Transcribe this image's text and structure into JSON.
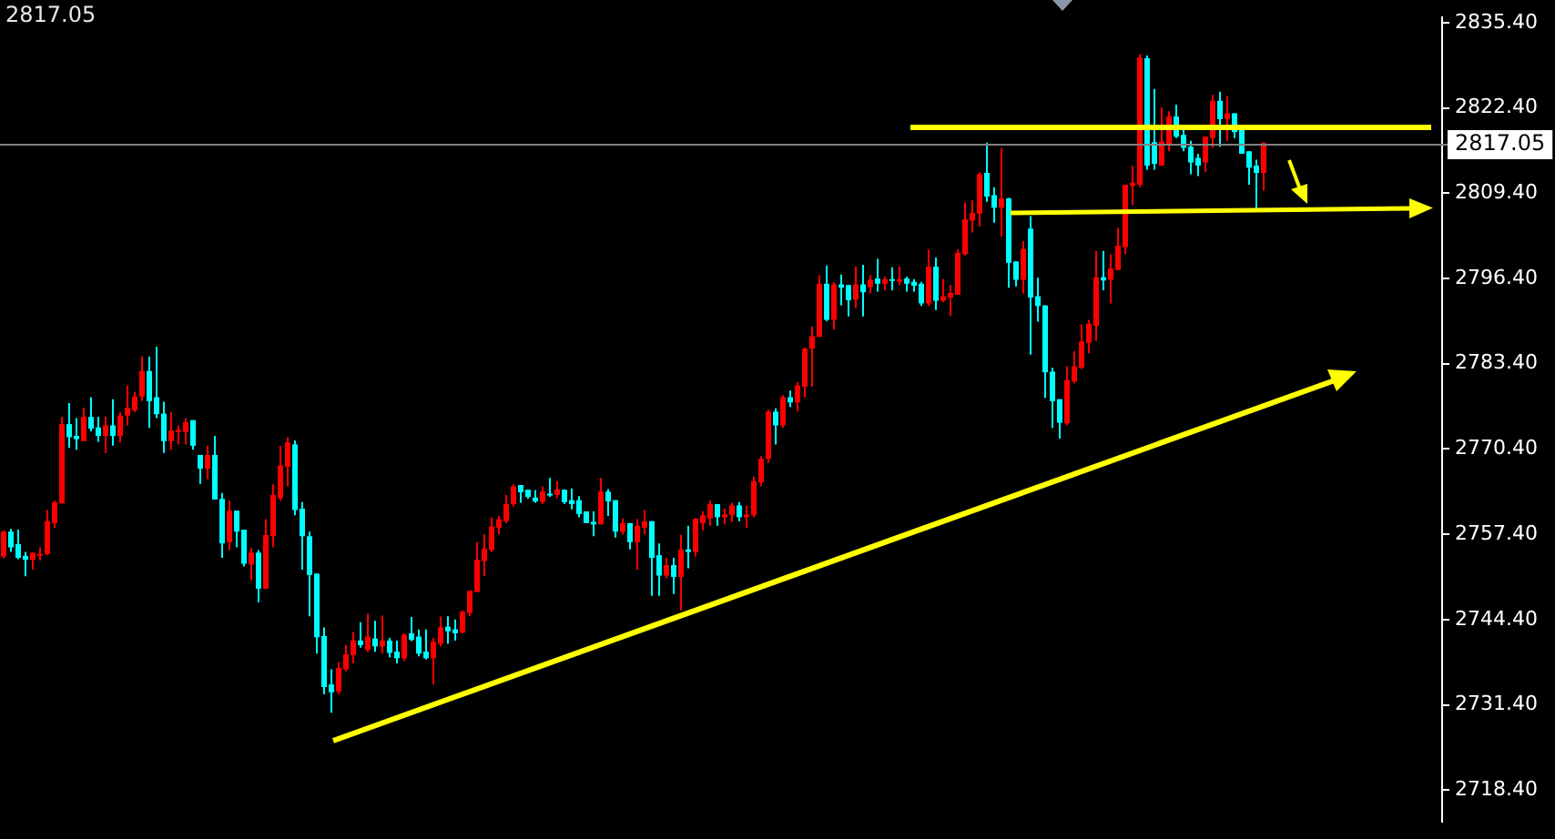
{
  "chart_data": {
    "type": "candlestick",
    "categories": [
      null,
      null,
      null,
      null,
      null,
      null,
      null,
      null,
      null,
      null,
      null,
      null,
      null,
      null,
      null,
      null,
      null,
      null,
      null,
      null,
      null,
      null,
      null,
      null,
      null,
      null,
      null,
      null,
      null,
      null,
      null,
      null,
      null,
      null,
      null,
      null,
      null,
      null,
      null,
      null,
      null,
      null,
      null,
      null,
      null,
      null,
      null,
      null,
      null,
      null,
      null,
      null,
      null,
      null,
      null,
      null,
      null,
      null,
      null,
      null,
      null,
      null,
      null,
      null,
      null,
      null,
      null,
      null,
      null,
      null,
      null,
      null,
      null,
      null,
      null,
      null,
      null,
      null,
      null,
      null,
      null,
      null,
      null,
      null,
      null,
      null,
      null,
      null,
      null,
      null,
      null,
      null,
      null,
      null,
      null,
      null,
      null,
      null,
      null,
      null,
      null,
      null,
      null,
      null,
      null,
      null,
      null,
      null,
      null,
      null,
      null,
      null,
      null,
      null,
      null,
      null,
      null,
      null,
      null,
      null,
      null,
      null,
      null,
      null,
      null,
      null,
      null,
      null,
      null,
      null,
      null,
      null,
      null,
      null,
      null,
      null,
      null,
      null,
      null,
      null,
      null,
      null,
      null,
      null,
      null,
      null,
      null,
      null,
      null,
      null,
      null,
      null,
      null,
      null,
      null,
      null,
      null,
      null,
      null,
      null,
      null,
      null,
      null,
      null,
      null,
      null,
      null,
      null,
      null,
      null,
      null,
      null,
      null,
      null,
      null,
      null,
      null,
      null,
      null,
      null,
      null,
      null,
      null,
      null,
      null,
      null,
      null,
      null,
      null,
      null,
      null,
      null,
      null,
      null,
      null,
      null,
      null,
      null
    ],
    "ohlc": [
      [
        2754.0,
        2758.0,
        2753.7,
        2757.8
      ],
      [
        2757.8,
        2758.2,
        2754.7,
        2755.4
      ],
      [
        2755.9,
        2758.1,
        2753.6,
        2753.8
      ],
      [
        2754.1,
        2754.7,
        2751.0,
        2753.5
      ],
      [
        2753.5,
        2754.6,
        2752.0,
        2754.6
      ],
      [
        2754.2,
        2755.4,
        2753.4,
        2754.4
      ],
      [
        2754.4,
        2761.1,
        2754.2,
        2759.4
      ],
      [
        2759.1,
        2762.5,
        2758.4,
        2762.3
      ],
      [
        2762.1,
        2775.3,
        2762.1,
        2774.2
      ],
      [
        2774.2,
        2777.4,
        2770.6,
        2772.2
      ],
      [
        2772.4,
        2775.1,
        2770.3,
        2771.9
      ],
      [
        2771.6,
        2776.7,
        2771.6,
        2775.3
      ],
      [
        2775.3,
        2778.3,
        2773.1,
        2773.5
      ],
      [
        2773.7,
        2775.3,
        2771.5,
        2772.4
      ],
      [
        2772.4,
        2775.3,
        2769.8,
        2774.0
      ],
      [
        2774.0,
        2778.0,
        2770.9,
        2772.4
      ],
      [
        2772.4,
        2776.0,
        2771.4,
        2775.5
      ],
      [
        2775.5,
        2780.1,
        2774.0,
        2776.7
      ],
      [
        2776.3,
        2779.1,
        2776.0,
        2778.4
      ],
      [
        2778.4,
        2784.5,
        2777.7,
        2782.3
      ],
      [
        2782.3,
        2784.5,
        2773.6,
        2777.7
      ],
      [
        2778.3,
        2786.0,
        2775.1,
        2775.7
      ],
      [
        2775.8,
        2777.6,
        2769.8,
        2771.6
      ],
      [
        2771.6,
        2776.0,
        2770.3,
        2773.2
      ],
      [
        2773.0,
        2774.0,
        2771.1,
        2773.3
      ],
      [
        2773.0,
        2775.1,
        2771.1,
        2774.5
      ],
      [
        2774.8,
        2774.8,
        2770.3,
        2770.9
      ],
      [
        2769.5,
        2769.5,
        2765.1,
        2767.4
      ],
      [
        2767.4,
        2770.9,
        2765.8,
        2769.5
      ],
      [
        2769.5,
        2772.4,
        2762.7,
        2762.7
      ],
      [
        2762.8,
        2763.7,
        2753.8,
        2756.0
      ],
      [
        2756.2,
        2762.6,
        2755.0,
        2761.0
      ],
      [
        2761.0,
        2761.0,
        2755.4,
        2757.8
      ],
      [
        2758.1,
        2758.1,
        2752.5,
        2752.9
      ],
      [
        2752.8,
        2755.3,
        2750.4,
        2754.6
      ],
      [
        2754.6,
        2755.0,
        2747.0,
        2749.1
      ],
      [
        2749.1,
        2759.7,
        2749.1,
        2757.3
      ],
      [
        2757.1,
        2765.0,
        2755.4,
        2763.4
      ],
      [
        2762.9,
        2770.9,
        2762.5,
        2767.9
      ],
      [
        2767.7,
        2772.2,
        2764.7,
        2771.4
      ],
      [
        2771.1,
        2771.7,
        2760.3,
        2761.1
      ],
      [
        2761.3,
        2762.3,
        2752.0,
        2757.1
      ],
      [
        2757.1,
        2757.8,
        2744.9,
        2751.2
      ],
      [
        2751.4,
        2751.4,
        2739.2,
        2741.7
      ],
      [
        2741.9,
        2743.2,
        2733.0,
        2734.1
      ],
      [
        2734.5,
        2736.8,
        2730.2,
        2733.3
      ],
      [
        2733.4,
        2737.9,
        2733.0,
        2737.0
      ],
      [
        2736.8,
        2740.5,
        2736.5,
        2739.1
      ],
      [
        2739.0,
        2742.5,
        2737.7,
        2741.2
      ],
      [
        2741.2,
        2744.0,
        2740.1,
        2740.5
      ],
      [
        2739.8,
        2745.3,
        2739.4,
        2741.8
      ],
      [
        2741.5,
        2744.2,
        2739.5,
        2740.3
      ],
      [
        2740.3,
        2745.0,
        2739.2,
        2741.2
      ],
      [
        2741.2,
        2741.6,
        2738.6,
        2739.3
      ],
      [
        2739.5,
        2741.2,
        2737.7,
        2738.5
      ],
      [
        2738.5,
        2742.3,
        2738.1,
        2742.1
      ],
      [
        2742.3,
        2744.8,
        2741.1,
        2741.3
      ],
      [
        2741.8,
        2742.9,
        2738.8,
        2739.2
      ],
      [
        2739.5,
        2742.9,
        2738.3,
        2738.5
      ],
      [
        2738.5,
        2741.6,
        2734.5,
        2741.0
      ],
      [
        2740.7,
        2744.9,
        2740.3,
        2743.2
      ],
      [
        2743.3,
        2744.9,
        2740.7,
        2742.6
      ],
      [
        2742.9,
        2744.4,
        2741.2,
        2742.3
      ],
      [
        2742.4,
        2745.8,
        2742.3,
        2745.6
      ],
      [
        2745.4,
        2748.8,
        2744.9,
        2748.8
      ],
      [
        2748.6,
        2756.2,
        2748.6,
        2753.5
      ],
      [
        2753.3,
        2757.4,
        2751.0,
        2755.2
      ],
      [
        2755.0,
        2760.0,
        2754.7,
        2758.6
      ],
      [
        2758.4,
        2760.2,
        2757.4,
        2759.7
      ],
      [
        2759.4,
        2763.4,
        2759.1,
        2762.0
      ],
      [
        2762.0,
        2765.0,
        2761.6,
        2764.7
      ],
      [
        2764.9,
        2764.9,
        2762.2,
        2763.8
      ],
      [
        2764.2,
        2764.2,
        2762.8,
        2763.1
      ],
      [
        2763.0,
        2764.1,
        2762.2,
        2762.4
      ],
      [
        2762.3,
        2764.7,
        2762.0,
        2763.9
      ],
      [
        2763.6,
        2766.0,
        2763.1,
        2763.3
      ],
      [
        2763.4,
        2765.5,
        2762.9,
        2764.2
      ],
      [
        2764.2,
        2764.2,
        2762.0,
        2762.3
      ],
      [
        2762.6,
        2764.4,
        2761.2,
        2762.0
      ],
      [
        2762.6,
        2763.2,
        2760.0,
        2760.5
      ],
      [
        2760.9,
        2760.9,
        2759.1,
        2759.1
      ],
      [
        2759.3,
        2760.9,
        2757.1,
        2758.9
      ],
      [
        2758.9,
        2766.0,
        2758.9,
        2763.9
      ],
      [
        2763.9,
        2764.3,
        2760.2,
        2762.4
      ],
      [
        2762.6,
        2762.6,
        2756.9,
        2757.8
      ],
      [
        2757.8,
        2759.8,
        2757.4,
        2759.1
      ],
      [
        2759.1,
        2759.1,
        2755.1,
        2756.2
      ],
      [
        2756.2,
        2759.7,
        2752.0,
        2758.7
      ],
      [
        2758.4,
        2761.1,
        2757.4,
        2759.4
      ],
      [
        2759.4,
        2759.4,
        2748.0,
        2753.8
      ],
      [
        2754.2,
        2756.0,
        2748.0,
        2751.1
      ],
      [
        2751.1,
        2753.8,
        2750.7,
        2752.7
      ],
      [
        2752.7,
        2753.8,
        2748.3,
        2750.9
      ],
      [
        2750.9,
        2757.3,
        2745.8,
        2755.1
      ],
      [
        2755.1,
        2758.7,
        2752.2,
        2754.7
      ],
      [
        2754.7,
        2759.8,
        2754.0,
        2759.8
      ],
      [
        2759.1,
        2760.9,
        2758.0,
        2760.3
      ],
      [
        2759.8,
        2762.5,
        2758.7,
        2762.0
      ],
      [
        2762.0,
        2762.0,
        2758.7,
        2760.0
      ],
      [
        2760.0,
        2761.3,
        2758.9,
        2760.4
      ],
      [
        2760.3,
        2762.2,
        2759.3,
        2761.8
      ],
      [
        2761.8,
        2762.3,
        2759.4,
        2760.0
      ],
      [
        2760.0,
        2761.8,
        2758.4,
        2760.4
      ],
      [
        2760.3,
        2766.2,
        2760.0,
        2765.5
      ],
      [
        2765.3,
        2769.3,
        2764.7,
        2768.9
      ],
      [
        2768.9,
        2776.4,
        2768.3,
        2776.1
      ],
      [
        2776.1,
        2776.6,
        2771.1,
        2774.0
      ],
      [
        2774.0,
        2778.6,
        2773.6,
        2778.3
      ],
      [
        2778.3,
        2779.3,
        2776.8,
        2777.5
      ],
      [
        2777.5,
        2780.6,
        2776.1,
        2780.1
      ],
      [
        2779.9,
        2785.9,
        2778.3,
        2785.7
      ],
      [
        2785.7,
        2789.1,
        2779.9,
        2787.6
      ],
      [
        2787.5,
        2796.9,
        2787.5,
        2795.6
      ],
      [
        2795.6,
        2798.4,
        2789.9,
        2790.1
      ],
      [
        2790.1,
        2795.8,
        2788.6,
        2795.5
      ],
      [
        2795.5,
        2797.0,
        2792.3,
        2795.0
      ],
      [
        2795.4,
        2795.4,
        2790.6,
        2793.1
      ],
      [
        2793.2,
        2798.2,
        2791.9,
        2795.5
      ],
      [
        2795.5,
        2798.5,
        2790.6,
        2794.3
      ],
      [
        2795.1,
        2796.9,
        2794.1,
        2796.2
      ],
      [
        2796.4,
        2799.4,
        2794.4,
        2795.6
      ],
      [
        2795.6,
        2796.7,
        2794.6,
        2796.3
      ],
      [
        2796.3,
        2798.1,
        2794.6,
        2796.1
      ],
      [
        2795.9,
        2798.2,
        2795.4,
        2796.3
      ],
      [
        2796.4,
        2796.7,
        2794.4,
        2795.6
      ],
      [
        2795.9,
        2796.3,
        2794.4,
        2795.3
      ],
      [
        2795.6,
        2795.9,
        2792.2,
        2792.6
      ],
      [
        2792.6,
        2800.8,
        2792.2,
        2798.2
      ],
      [
        2798.2,
        2799.6,
        2791.6,
        2793.0
      ],
      [
        2793.0,
        2796.3,
        2792.8,
        2793.7
      ],
      [
        2793.5,
        2795.4,
        2790.7,
        2794.2
      ],
      [
        2793.9,
        2800.8,
        2793.9,
        2800.3
      ],
      [
        2800.1,
        2808.0,
        2799.9,
        2805.4
      ],
      [
        2805.2,
        2808.3,
        2803.4,
        2806.4
      ],
      [
        2806.3,
        2812.6,
        2804.3,
        2812.3
      ],
      [
        2812.5,
        2817.1,
        2808.1,
        2808.9
      ],
      [
        2809.1,
        2810.3,
        2804.9,
        2807.2
      ],
      [
        2807.2,
        2816.3,
        2802.8,
        2808.6
      ],
      [
        2808.6,
        2808.7,
        2795.0,
        2798.8
      ],
      [
        2799.0,
        2799.0,
        2795.2,
        2796.2
      ],
      [
        2796.2,
        2802.1,
        2794.1,
        2800.9
      ],
      [
        2804.0,
        2805.9,
        2784.8,
        2793.5
      ],
      [
        2793.7,
        2796.5,
        2789.8,
        2792.2
      ],
      [
        2792.3,
        2792.3,
        2778.2,
        2782.1
      ],
      [
        2782.2,
        2782.8,
        2773.6,
        2777.7
      ],
      [
        2778.0,
        2778.0,
        2772.0,
        2774.4
      ],
      [
        2774.3,
        2783.0,
        2774.0,
        2780.9
      ],
      [
        2780.7,
        2785.3,
        2780.4,
        2783.0
      ],
      [
        2782.8,
        2789.4,
        2782.6,
        2786.8
      ],
      [
        2786.6,
        2790.1,
        2785.0,
        2789.5
      ],
      [
        2789.2,
        2800.6,
        2786.9,
        2796.6
      ],
      [
        2796.6,
        2800.6,
        2794.6,
        2796.1
      ],
      [
        2796.2,
        2800.1,
        2792.6,
        2797.9
      ],
      [
        2797.7,
        2804.1,
        2797.7,
        2801.4
      ],
      [
        2801.2,
        2810.7,
        2800.1,
        2810.7
      ],
      [
        2810.5,
        2813.6,
        2807.6,
        2811.0
      ],
      [
        2810.7,
        2830.6,
        2810.3,
        2830.1
      ],
      [
        2830.0,
        2830.4,
        2813.0,
        2813.6
      ],
      [
        2817.2,
        2825.3,
        2813.0,
        2813.9
      ],
      [
        2813.6,
        2822.5,
        2813.6,
        2817.3
      ],
      [
        2816.9,
        2821.9,
        2815.8,
        2821.1
      ],
      [
        2821.1,
        2822.9,
        2817.8,
        2818.0
      ],
      [
        2818.3,
        2819.5,
        2815.8,
        2816.3
      ],
      [
        2816.5,
        2817.4,
        2812.3,
        2814.1
      ],
      [
        2814.8,
        2815.4,
        2812.0,
        2813.6
      ],
      [
        2814.1,
        2818.0,
        2812.6,
        2818.0
      ],
      [
        2817.8,
        2824.4,
        2816.3,
        2823.5
      ],
      [
        2823.5,
        2824.9,
        2816.5,
        2820.7
      ],
      [
        2820.7,
        2824.2,
        2817.4,
        2821.6
      ],
      [
        2821.6,
        2821.6,
        2817.8,
        2818.7
      ],
      [
        2819.4,
        2819.4,
        2815.4,
        2815.4
      ],
      [
        2815.8,
        2815.8,
        2810.7,
        2813.3
      ],
      [
        2813.6,
        2814.5,
        2807.0,
        2812.5
      ],
      [
        2812.5,
        2817.2,
        2809.8,
        2817.05
      ],
      null,
      null,
      null,
      null,
      null,
      null,
      null,
      null,
      null,
      null,
      null,
      null,
      null,
      null,
      null,
      null,
      null,
      null,
      null,
      null,
      null,
      null,
      null,
      null
    ],
    "colors": [
      "#ff0000",
      "#00ffff",
      "#00ffff",
      "#00ffff",
      "#ff0000",
      "#ff0000",
      "#ff0000",
      "#ff0000",
      "#ff0000",
      "#00ffff",
      "#00ffff",
      "#ff0000",
      "#00ffff",
      "#00ffff",
      "#ff0000",
      "#00ffff",
      "#ff0000",
      "#ff0000",
      "#ff0000",
      "#ff0000",
      "#00ffff",
      "#00ffff",
      "#00ffff",
      "#ff0000",
      "#ff0000",
      "#ff0000",
      "#00ffff",
      "#00ffff",
      "#ff0000",
      "#00ffff",
      "#00ffff",
      "#ff0000",
      "#00ffff",
      "#00ffff",
      "#ff0000",
      "#00ffff",
      "#ff0000",
      "#ff0000",
      "#ff0000",
      "#ff0000",
      "#00ffff",
      "#00ffff",
      "#00ffff",
      "#00ffff",
      "#00ffff",
      "#00ffff",
      "#ff0000",
      "#ff0000",
      "#ff0000",
      "#00ffff",
      "#ff0000",
      "#00ffff",
      "#ff0000",
      "#00ffff",
      "#00ffff",
      "#ff0000",
      "#00ffff",
      "#00ffff",
      "#00ffff",
      "#ff0000",
      "#ff0000",
      "#00ffff",
      "#00ffff",
      "#ff0000",
      "#ff0000",
      "#ff0000",
      "#ff0000",
      "#ff0000",
      "#ff0000",
      "#ff0000",
      "#ff0000",
      "#00ffff",
      "#00ffff",
      "#00ffff",
      "#ff0000",
      "#00ffff",
      "#ff0000",
      "#00ffff",
      "#00ffff",
      "#00ffff",
      "#00ffff",
      "#00ffff",
      "#ff0000",
      "#00ffff",
      "#00ffff",
      "#ff0000",
      "#00ffff",
      "#ff0000",
      "#ff0000",
      "#00ffff",
      "#00ffff",
      "#ff0000",
      "#00ffff",
      "#ff0000",
      "#00ffff",
      "#ff0000",
      "#ff0000",
      "#ff0000",
      "#00ffff",
      "#ff0000",
      "#ff0000",
      "#00ffff",
      "#ff0000",
      "#ff0000",
      "#ff0000",
      "#ff0000",
      "#00ffff",
      "#ff0000",
      "#00ffff",
      "#ff0000",
      "#ff0000",
      "#ff0000",
      "#ff0000",
      "#00ffff",
      "#ff0000",
      "#00ffff",
      "#00ffff",
      "#ff0000",
      "#00ffff",
      "#ff0000",
      "#00ffff",
      "#ff0000",
      "#00ffff",
      "#ff0000",
      "#00ffff",
      "#00ffff",
      "#00ffff",
      "#ff0000",
      "#00ffff",
      "#ff0000",
      "#ff0000",
      "#ff0000",
      "#ff0000",
      "#ff0000",
      "#ff0000",
      "#00ffff",
      "#00ffff",
      "#ff0000",
      "#00ffff",
      "#00ffff",
      "#ff0000",
      "#00ffff",
      "#00ffff",
      "#00ffff",
      "#00ffff",
      "#00ffff",
      "#ff0000",
      "#ff0000",
      "#ff0000",
      "#ff0000",
      "#ff0000",
      "#00ffff",
      "#ff0000",
      "#ff0000",
      "#ff0000",
      "#ff0000",
      "#ff0000",
      "#00ffff",
      "#00ffff",
      "#ff0000",
      "#ff0000",
      "#00ffff",
      "#00ffff",
      "#00ffff",
      "#00ffff",
      "#ff0000",
      "#ff0000",
      "#00ffff",
      "#ff0000",
      "#00ffff",
      "#00ffff",
      "#00ffff",
      "#00ffff",
      "#ff0000",
      null,
      null,
      null,
      null,
      null,
      null,
      null,
      null,
      null,
      null,
      null,
      null,
      null,
      null,
      null,
      null,
      null,
      null,
      null,
      null,
      null,
      null,
      null,
      null
    ],
    "ylim": [
      2713.6,
      2836.2
    ],
    "yticks": [
      {
        "value": 2718.4,
        "label": "2718.40"
      },
      {
        "value": 2731.4,
        "label": "2731.40"
      },
      {
        "value": 2744.4,
        "label": "2744.40"
      },
      {
        "value": 2757.4,
        "label": "2757.40"
      },
      {
        "value": 2770.4,
        "label": "2770.40"
      },
      {
        "value": 2783.4,
        "label": "2783.40"
      },
      {
        "value": 2796.4,
        "label": "2796.40"
      },
      {
        "value": 2809.4,
        "label": "2809.40"
      },
      {
        "value": 2822.4,
        "label": "2822.40"
      },
      {
        "value": 2835.4,
        "label": "2835.40"
      }
    ],
    "tick_labels": "y",
    "ref_lines": [
      {
        "axis": "y",
        "value": 2817.05,
        "label": "2817.05",
        "color": "#808080"
      }
    ],
    "annotations": [
      "2817.05"
    ]
  }
}
